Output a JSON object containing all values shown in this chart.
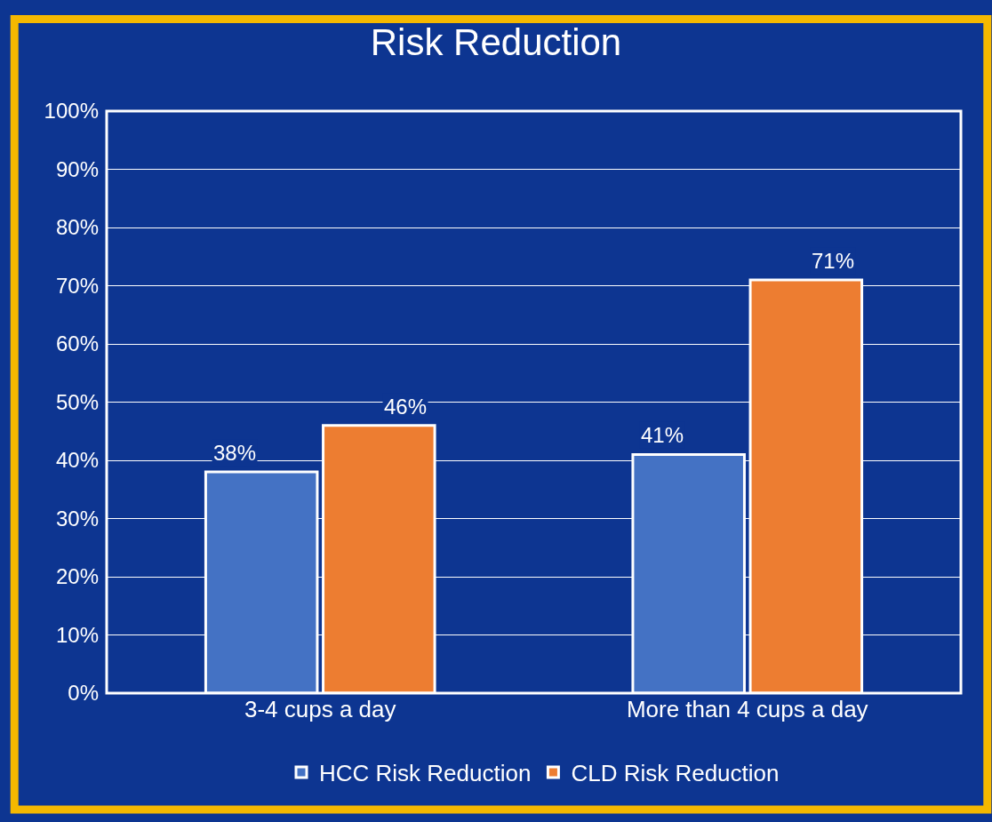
{
  "chart_data": {
    "type": "bar",
    "title": "Risk Reduction",
    "categories": [
      "3-4 cups a day",
      "More than 4 cups a day"
    ],
    "series": [
      {
        "name": "HCC Risk Reduction",
        "color": "#4472c4",
        "values": [
          38,
          41
        ],
        "value_labels": [
          "38%",
          "41%"
        ]
      },
      {
        "name": "CLD Risk Reduction",
        "color": "#ed7d31",
        "values": [
          46,
          71
        ],
        "value_labels": [
          "46%",
          "71%"
        ]
      }
    ],
    "ylim": [
      0,
      100
    ],
    "yticks": [
      {
        "value": 0,
        "label": "0%"
      },
      {
        "value": 10,
        "label": "10%"
      },
      {
        "value": 20,
        "label": "20%"
      },
      {
        "value": 30,
        "label": "30%"
      },
      {
        "value": 40,
        "label": "40%"
      },
      {
        "value": 50,
        "label": "50%"
      },
      {
        "value": 60,
        "label": "60%"
      },
      {
        "value": 70,
        "label": "70%"
      },
      {
        "value": 80,
        "label": "80%"
      },
      {
        "value": 90,
        "label": "90%"
      },
      {
        "value": 100,
        "label": "100%"
      }
    ],
    "grid": "y",
    "legend": "bottom"
  }
}
